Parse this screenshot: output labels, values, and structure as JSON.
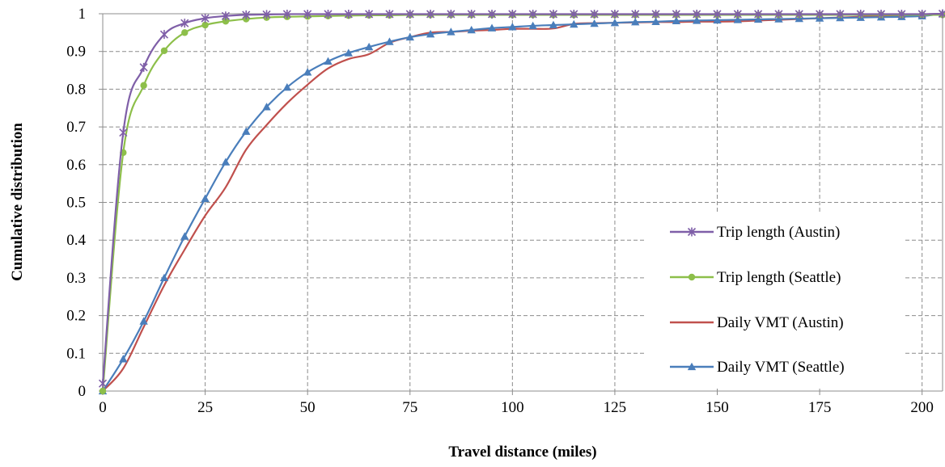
{
  "chart_data": {
    "type": "line",
    "title": "",
    "xlabel": "Travel distance (miles)",
    "ylabel": "Cumulative distribution",
    "xlim": [
      0,
      205
    ],
    "ylim": [
      0,
      1
    ],
    "x_ticks": [
      0,
      25,
      50,
      75,
      100,
      125,
      150,
      175,
      200
    ],
    "x_tick_labels": [
      "0",
      "25",
      "50",
      "75",
      "100",
      "125",
      "150",
      "175",
      "200"
    ],
    "y_ticks": [
      0,
      0.1,
      0.2,
      0.3,
      0.4,
      0.5,
      0.6,
      0.7,
      0.8,
      0.9,
      1
    ],
    "y_tick_labels": [
      "0",
      "0.1",
      "0.2",
      "0.3",
      "0.4",
      "0.5",
      "0.6",
      "0.7",
      "0.8",
      "0.9",
      "1"
    ],
    "grid": "dashed, x and y",
    "legend_position": "right",
    "series": [
      {
        "name": "Trip length (Austin)",
        "color": "#7f5fa8",
        "marker": "star",
        "x": [
          0,
          5,
          10,
          15,
          20,
          25,
          30,
          35,
          40,
          45,
          50,
          55,
          60,
          65,
          70,
          75,
          80,
          85,
          90,
          95,
          100,
          105,
          110,
          115,
          120,
          125,
          130,
          135,
          140,
          145,
          150,
          155,
          160,
          165,
          170,
          175,
          180,
          185,
          190,
          195,
          200,
          205
        ],
        "y": [
          0.02,
          0.685,
          0.858,
          0.945,
          0.975,
          0.988,
          0.994,
          0.997,
          0.998,
          0.999,
          0.999,
          0.999,
          0.999,
          0.999,
          0.999,
          0.999,
          0.999,
          0.999,
          0.999,
          0.999,
          0.999,
          0.999,
          0.999,
          0.999,
          0.999,
          0.999,
          0.999,
          0.999,
          0.999,
          0.999,
          0.999,
          0.999,
          0.999,
          0.999,
          0.999,
          0.999,
          0.999,
          0.999,
          0.999,
          0.999,
          0.999,
          1.0
        ]
      },
      {
        "name": "Trip length (Seattle)",
        "color": "#8dbf4a",
        "marker": "circle",
        "x": [
          0,
          5,
          10,
          15,
          20,
          25,
          30,
          35,
          40,
          45,
          50,
          55,
          60,
          65,
          70,
          75,
          80,
          85,
          90,
          95,
          100,
          105,
          110,
          115,
          120,
          125,
          130,
          135,
          140,
          145,
          150,
          155,
          160,
          165,
          170,
          175,
          180,
          185,
          190,
          195,
          200,
          205
        ],
        "y": [
          0.0,
          0.632,
          0.81,
          0.902,
          0.95,
          0.97,
          0.98,
          0.986,
          0.99,
          0.992,
          0.993,
          0.994,
          0.995,
          0.996,
          0.996,
          0.997,
          0.997,
          0.997,
          0.997,
          0.997,
          0.997,
          0.997,
          0.997,
          0.997,
          0.997,
          0.997,
          0.997,
          0.997,
          0.997,
          0.997,
          0.997,
          0.997,
          0.997,
          0.997,
          0.997,
          0.997,
          0.997,
          0.997,
          0.997,
          0.997,
          0.997,
          0.997
        ]
      },
      {
        "name": "Daily VMT (Austin)",
        "color": "#c0504d",
        "marker": "none",
        "x": [
          0,
          5,
          10,
          15,
          20,
          25,
          30,
          35,
          40,
          45,
          50,
          55,
          60,
          65,
          70,
          75,
          80,
          85,
          90,
          95,
          100,
          105,
          110,
          115,
          120,
          125,
          130,
          135,
          140,
          145,
          150,
          155,
          160,
          165,
          170,
          175,
          180,
          185,
          190,
          195,
          200,
          205
        ],
        "y": [
          0.0,
          0.06,
          0.17,
          0.28,
          0.375,
          0.465,
          0.54,
          0.64,
          0.705,
          0.763,
          0.812,
          0.855,
          0.88,
          0.893,
          0.923,
          0.938,
          0.95,
          0.952,
          0.955,
          0.957,
          0.96,
          0.96,
          0.961,
          0.973,
          0.975,
          0.976,
          0.977,
          0.978,
          0.978,
          0.979,
          0.979,
          0.98,
          0.982,
          0.984,
          0.986,
          0.988,
          0.99,
          0.992,
          0.994,
          0.996,
          0.998,
          1.0
        ]
      },
      {
        "name": "Daily VMT (Seattle)",
        "color": "#4a7ebb",
        "marker": "triangle",
        "x": [
          0,
          5,
          10,
          15,
          20,
          25,
          30,
          35,
          40,
          45,
          50,
          55,
          60,
          65,
          70,
          75,
          80,
          85,
          90,
          95,
          100,
          105,
          110,
          115,
          120,
          125,
          130,
          135,
          140,
          145,
          150,
          155,
          160,
          165,
          170,
          175,
          180,
          185,
          190,
          195,
          200,
          205
        ],
        "y": [
          0.0,
          0.085,
          0.185,
          0.3,
          0.41,
          0.51,
          0.607,
          0.688,
          0.753,
          0.805,
          0.845,
          0.874,
          0.896,
          0.912,
          0.926,
          0.938,
          0.946,
          0.952,
          0.957,
          0.962,
          0.965,
          0.968,
          0.97,
          0.972,
          0.974,
          0.976,
          0.978,
          0.979,
          0.981,
          0.982,
          0.983,
          0.984,
          0.985,
          0.986,
          0.987,
          0.988,
          0.989,
          0.99,
          0.991,
          0.992,
          0.994,
          1.0
        ]
      }
    ]
  }
}
